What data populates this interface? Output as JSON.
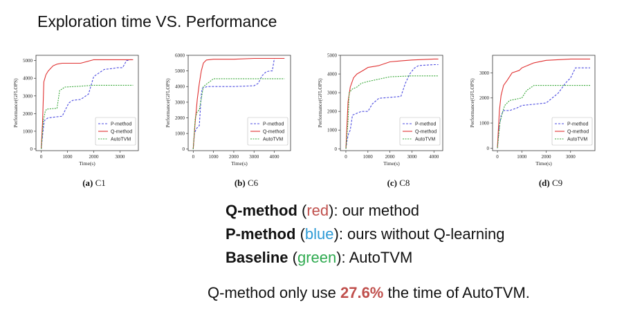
{
  "slide": {
    "title": "Exploration time VS. Performance"
  },
  "legend_text": [
    {
      "method": "Q-method",
      "open": " (",
      "color_word": "red",
      "close": "): our method",
      "color": "#c0504d"
    },
    {
      "method": "P-method",
      "open": " (",
      "color_word": "blue",
      "close": "): ours without Q-learning",
      "color": "#2e9bd6"
    },
    {
      "method": "Baseline",
      "open": " (",
      "color_word": "green",
      "close": "): AutoTVM",
      "color": "#2eaa4f"
    }
  ],
  "summary": {
    "before": "Q-method only use ",
    "highlight": "27.6%",
    "after": " the time of AutoTVM."
  },
  "chart_data": [
    {
      "type": "line",
      "caption_letter": "(a)",
      "caption_name": "C1",
      "xlabel": "Time(s)",
      "ylabel": "Performance(GFLOPS)",
      "xlim": [
        -200,
        3700
      ],
      "ylim": [
        -100,
        5300
      ],
      "xticks": [
        0,
        1000,
        2000,
        3000
      ],
      "yticks": [
        0,
        1000,
        2000,
        3000,
        4000,
        5000
      ],
      "legend_position": "lower-right",
      "grid": false,
      "series": [
        {
          "name": "P-method",
          "color": "#4a4ae0",
          "dash": "3,2",
          "x": [
            0,
            60,
            120,
            250,
            500,
            800,
            1050,
            1200,
            1500,
            1800,
            2000,
            2200,
            2400,
            2700,
            2900,
            3100,
            3250,
            3400,
            3500
          ],
          "y": [
            0,
            900,
            1600,
            1750,
            1800,
            1850,
            2600,
            2750,
            2800,
            3100,
            4100,
            4300,
            4500,
            4550,
            4600,
            4600,
            5000,
            5050,
            5050
          ]
        },
        {
          "name": "Q-method",
          "color": "#e03030",
          "dash": "",
          "x": [
            0,
            50,
            100,
            180,
            260,
            350,
            450,
            600,
            800,
            1000,
            1500,
            2000,
            2500,
            3000,
            3500
          ],
          "y": [
            0,
            1500,
            3800,
            4200,
            4400,
            4550,
            4700,
            4800,
            4850,
            4850,
            4850,
            5050,
            5050,
            5050,
            5050
          ]
        },
        {
          "name": "AutoTVM",
          "color": "#39a839",
          "dash": "2,1.5",
          "x": [
            0,
            80,
            150,
            200,
            600,
            700,
            900,
            1500,
            2000,
            3000,
            3500
          ],
          "y": [
            0,
            1600,
            2100,
            2250,
            2300,
            3300,
            3500,
            3550,
            3600,
            3600,
            3600
          ]
        }
      ]
    },
    {
      "type": "line",
      "caption_letter": "(b)",
      "caption_name": "C6",
      "xlabel": "Time(s)",
      "ylabel": "Performance(GFLOPS)",
      "xlim": [
        -250,
        4800
      ],
      "ylim": [
        -100,
        6000
      ],
      "xticks": [
        0,
        1000,
        2000,
        3000,
        4000
      ],
      "yticks": [
        0,
        1000,
        2000,
        3000,
        4000,
        5000,
        6000
      ],
      "legend_position": "lower-right",
      "grid": false,
      "series": [
        {
          "name": "P-method",
          "color": "#4a4ae0",
          "dash": "3,2",
          "x": [
            0,
            60,
            150,
            300,
            400,
            450,
            700,
            1000,
            2000,
            3000,
            3200,
            3400,
            3600,
            3800,
            3900,
            4000,
            4500
          ],
          "y": [
            0,
            1000,
            1300,
            1500,
            3500,
            3900,
            4000,
            4000,
            4000,
            4050,
            4200,
            4700,
            4950,
            5000,
            5000,
            5800,
            5800
          ]
        },
        {
          "name": "Q-method",
          "color": "#e03030",
          "dash": "",
          "x": [
            0,
            80,
            200,
            300,
            400,
            500,
            650,
            1000,
            2000,
            3000,
            4000,
            4500
          ],
          "y": [
            0,
            1500,
            3200,
            4200,
            5000,
            5500,
            5700,
            5750,
            5750,
            5800,
            5800,
            5800
          ]
        },
        {
          "name": "AutoTVM",
          "color": "#39a839",
          "dash": "2,1.5",
          "x": [
            0,
            100,
            200,
            300,
            500,
            800,
            1000,
            2000,
            3000,
            4000,
            4500
          ],
          "y": [
            0,
            2000,
            2400,
            2500,
            4000,
            4300,
            4500,
            4500,
            4500,
            4500,
            4500
          ]
        }
      ]
    },
    {
      "type": "line",
      "caption_letter": "(c)",
      "caption_name": "C8",
      "xlabel": "Time(s)",
      "ylabel": "Performance(GFLOPS)",
      "xlim": [
        -250,
        4400
      ],
      "ylim": [
        -100,
        5000
      ],
      "xticks": [
        0,
        1000,
        2000,
        3000,
        4000
      ],
      "yticks": [
        0,
        1000,
        2000,
        3000,
        4000,
        5000
      ],
      "legend_position": "lower-right",
      "grid": false,
      "series": [
        {
          "name": "P-method",
          "color": "#4a4ae0",
          "dash": "3,2",
          "x": [
            0,
            60,
            120,
            200,
            300,
            500,
            700,
            1000,
            1200,
            1500,
            2000,
            2500,
            2700,
            2900,
            3100,
            3300,
            4000,
            4200
          ],
          "y": [
            0,
            500,
            800,
            1000,
            1800,
            1900,
            2000,
            2000,
            2400,
            2700,
            2750,
            2800,
            3500,
            4000,
            4300,
            4450,
            4500,
            4500
          ]
        },
        {
          "name": "Q-method",
          "color": "#e03030",
          "dash": "",
          "x": [
            0,
            50,
            100,
            200,
            350,
            500,
            800,
            1000,
            1500,
            2000,
            2500,
            3000,
            4000,
            4200
          ],
          "y": [
            0,
            1200,
            2500,
            3300,
            3800,
            4000,
            4200,
            4350,
            4450,
            4650,
            4700,
            4750,
            4800,
            4800
          ]
        },
        {
          "name": "AutoTVM",
          "color": "#39a839",
          "dash": "2,1.5",
          "x": [
            0,
            100,
            150,
            300,
            500,
            700,
            1000,
            2000,
            3000,
            4000,
            4200
          ],
          "y": [
            0,
            1500,
            3000,
            3200,
            3300,
            3500,
            3600,
            3850,
            3900,
            3900,
            3900
          ]
        }
      ]
    },
    {
      "type": "line",
      "caption_letter": "(d)",
      "caption_name": "C9",
      "xlabel": "Time(s)",
      "ylabel": "Performance(GFLOPS)",
      "xlim": [
        -200,
        4000
      ],
      "ylim": [
        -100,
        3700
      ],
      "xticks": [
        0,
        1000,
        2000,
        3000
      ],
      "yticks": [
        0,
        1000,
        2000,
        3000
      ],
      "legend_position": "lower-right",
      "grid": false,
      "series": [
        {
          "name": "P-method",
          "color": "#4a4ae0",
          "dash": "3,2",
          "x": [
            0,
            80,
            150,
            250,
            500,
            800,
            1000,
            1500,
            2000,
            2500,
            2800,
            3000,
            3200,
            3500,
            3800
          ],
          "y": [
            0,
            900,
            1300,
            1500,
            1500,
            1600,
            1700,
            1750,
            1800,
            2200,
            2600,
            2800,
            3200,
            3200,
            3200
          ]
        },
        {
          "name": "Q-method",
          "color": "#e03030",
          "dash": "",
          "x": [
            0,
            80,
            150,
            250,
            400,
            600,
            900,
            1000,
            1500,
            2000,
            3000,
            3800
          ],
          "y": [
            0,
            1500,
            2100,
            2500,
            2700,
            3000,
            3100,
            3200,
            3400,
            3500,
            3550,
            3550
          ]
        },
        {
          "name": "AutoTVM",
          "color": "#39a839",
          "dash": "2,1.5",
          "x": [
            0,
            100,
            200,
            300,
            500,
            1000,
            1200,
            1500,
            2000,
            3000,
            3800
          ],
          "y": [
            0,
            1000,
            1400,
            1700,
            1900,
            2000,
            2300,
            2500,
            2500,
            2500,
            2500
          ]
        }
      ]
    }
  ]
}
